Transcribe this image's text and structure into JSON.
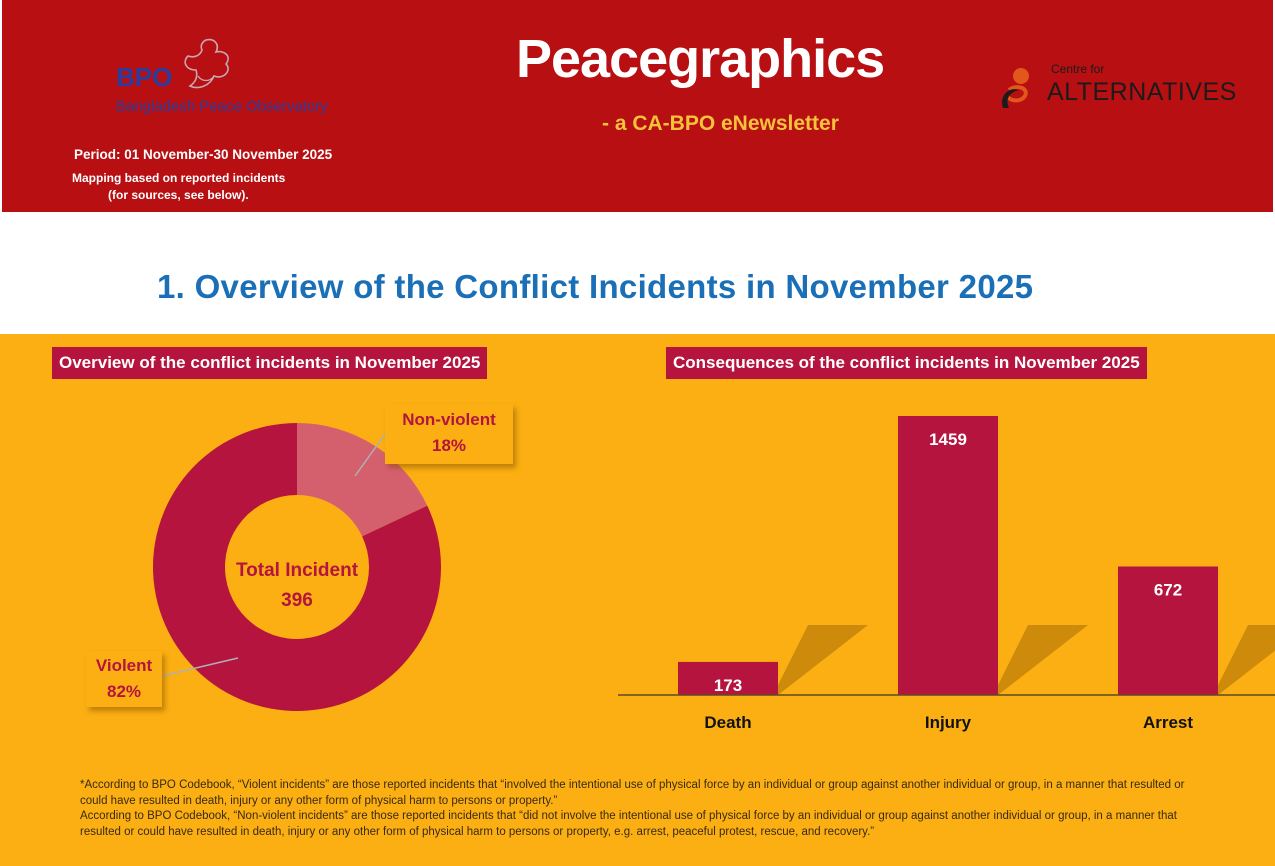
{
  "header": {
    "bpo_abbr": "BPO",
    "bpo_name": "Bangladesh Peace Observatory",
    "brand_title": "Peacegraphics",
    "brand_subtitle": "- a CA-BPO eNewsletter",
    "ca_small": "Centre for",
    "ca_name": "ALTERNATIVES",
    "period": "Period: 01 November-30 November 2025",
    "mapping_line1": "Mapping based on reported incidents",
    "mapping_line2": "(for sources, see below)."
  },
  "section_title": "1. Overview of the Conflict Incidents in November 2025",
  "colors": {
    "header_red": "#b70f12",
    "panel_orange": "#fbaf12",
    "crimson": "#b5143e",
    "pink": "#d5606d",
    "heading_blue": "#1a6fb6"
  },
  "chart_data": [
    {
      "type": "pie",
      "title": "Overview of the conflict incidents in November 2025",
      "center_label": "Total Incident",
      "total": 396,
      "slices": [
        {
          "label": "Non-violent",
          "percent": 18,
          "percent_label": "18%",
          "color": "#d5606d"
        },
        {
          "label": "Violent",
          "percent": 82,
          "percent_label": "82%",
          "color": "#b5143e"
        }
      ]
    },
    {
      "type": "bar",
      "title": "Consequences of the conflict incidents in November 2025",
      "categories": [
        "Death",
        "Injury",
        "Arrest"
      ],
      "values": [
        173,
        1459,
        672
      ],
      "ylim": [
        0,
        1459
      ],
      "grid": false
    }
  ],
  "footnote": {
    "violent": "*According to BPO Codebook, “Violent incidents” are those reported incidents that “involved the intentional use of physical force by an individual or group against another individual or group, in a manner that resulted or could have resulted in death, injury or any other form of physical harm to persons or property.”",
    "nonviolent": "According to BPO Codebook, “Non-violent incidents” are those reported incidents that “did not involve the intentional use of physical force by an individual or group against another individual or group, in a manner that resulted or could have resulted in death, injury or any other form of physical harm to persons or property, e.g. arrest, peaceful protest, rescue, and recovery.”"
  }
}
